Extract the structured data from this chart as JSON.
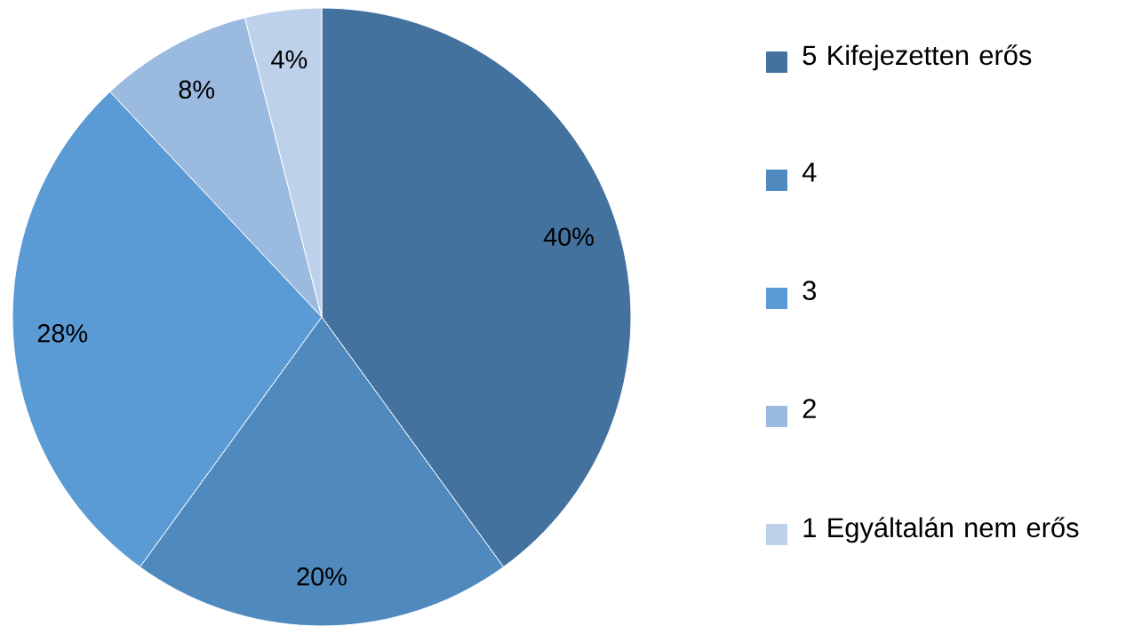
{
  "chart_data": {
    "type": "pie",
    "categories": [
      "5 Kifejezetten erős",
      "4",
      "3",
      "2",
      "1 Egyáltalán nem erős"
    ],
    "values": [
      40,
      20,
      28,
      8,
      4
    ],
    "colors": [
      "#44729f",
      "#4f89bd",
      "#5b9bd5",
      "#9bbadf",
      "#bdd1eb"
    ],
    "value_labels": [
      "40%",
      "20%",
      "28%",
      "8%",
      "4%"
    ],
    "legend": "right"
  }
}
